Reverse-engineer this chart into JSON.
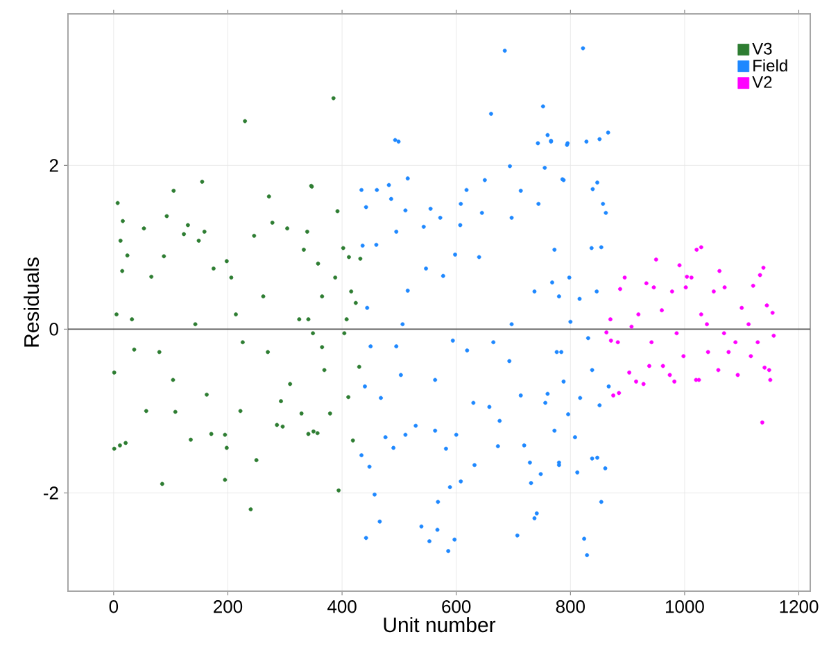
{
  "chart_data": {
    "type": "scatter",
    "xlabel": "Unit number",
    "ylabel": "Residuals",
    "xlim": [
      -80,
      1220
    ],
    "ylim": [
      -3.2,
      3.85
    ],
    "xticks": [
      0,
      200,
      400,
      600,
      800,
      1000,
      1200
    ],
    "yticks": [
      -2,
      0,
      2
    ],
    "grid": true,
    "legend": "top right",
    "marker": "circle",
    "ref_lines": [
      {
        "axis": "y",
        "value": 0,
        "color": "#555555"
      }
    ],
    "series": [
      {
        "name": "V3",
        "color": "#2e7d32",
        "x": [
          1,
          11,
          21,
          7,
          16,
          12,
          15,
          24,
          1,
          5,
          32,
          36,
          53,
          66,
          57,
          85,
          93,
          105,
          88,
          80,
          104,
          108,
          123,
          130,
          135,
          155,
          149,
          159,
          143,
          163,
          171,
          175,
          195,
          195,
          198,
          198,
          206,
          230,
          240,
          250,
          222,
          226,
          214,
          246,
          272,
          278,
          262,
          286,
          296,
          304,
          293,
          270,
          309,
          329,
          333,
          339,
          346,
          341,
          350,
          325,
          349,
          358,
          365,
          369,
          385,
          347,
          392,
          394,
          357,
          379,
          411,
          419,
          402,
          412,
          432,
          424,
          430,
          404,
          365,
          341,
          408,
          388,
          416
        ],
        "values": [
          -1.46,
          -1.42,
          -1.39,
          1.54,
          1.32,
          1.08,
          0.71,
          0.9,
          -0.53,
          0.18,
          0.12,
          -0.25,
          1.23,
          0.64,
          -1.0,
          -1.89,
          1.38,
          1.69,
          0.89,
          -0.28,
          -0.62,
          -1.01,
          1.16,
          1.27,
          -1.35,
          1.8,
          1.08,
          1.19,
          0.06,
          -0.8,
          -1.28,
          0.74,
          -1.29,
          -1.84,
          -1.45,
          0.83,
          0.63,
          2.54,
          -2.2,
          -1.6,
          -1.0,
          -0.16,
          0.18,
          1.14,
          1.62,
          1.3,
          0.4,
          -1.17,
          -1.19,
          1.23,
          -0.88,
          -0.28,
          -0.67,
          -1.03,
          0.97,
          1.19,
          1.75,
          -1.28,
          -1.25,
          0.12,
          -0.05,
          0.8,
          0.4,
          -0.5,
          2.82,
          1.74,
          1.44,
          -1.97,
          -1.27,
          -1.03,
          -0.83,
          -1.36,
          0.99,
          0.88,
          0.86,
          0.32,
          -0.46,
          -0.05,
          -0.22,
          0.12,
          0.12,
          0.63,
          0.46
        ]
      },
      {
        "name": "Field",
        "color": "#1e88ff",
        "x": [
          434,
          442,
          436,
          444,
          440,
          434,
          442,
          448,
          457,
          466,
          460,
          461,
          450,
          468,
          482,
          486,
          493,
          499,
          490,
          476,
          495,
          495,
          503,
          515,
          511,
          515,
          506,
          511,
          529,
          539,
          543,
          553,
          567,
          568,
          563,
          555,
          547,
          563,
          572,
          577,
          582,
          586,
          589,
          597,
          600,
          608,
          598,
          608,
          607,
          594,
          618,
          619,
          630,
          632,
          640,
          645,
          650,
          661,
          658,
          665,
          676,
          673,
          685,
          694,
          697,
          693,
          697,
          707,
          713,
          713,
          719,
          729,
          731,
          737,
          741,
          743,
          744,
          752,
          755,
          760,
          766,
          768,
          748,
          737,
          756,
          772,
          780,
          788,
          795,
          784,
          822,
          766,
          794,
          828,
          851,
          866,
          786,
          839,
          847,
          857,
          862,
          837,
          854,
          824,
          829,
          854,
          838,
          847,
          861,
          812,
          780,
          808,
          796,
          760,
          851,
          867,
          831,
          800,
          798,
          816,
          780,
          772,
          776,
          846,
          838,
          817,
          788
        ],
        "values": [
          1.7,
          1.49,
          1.02,
          0.26,
          -0.7,
          -1.54,
          -2.55,
          -1.68,
          -2.02,
          -2.35,
          1.03,
          1.7,
          -0.21,
          -0.84,
          1.76,
          1.59,
          2.31,
          2.29,
          -1.45,
          -1.32,
          1.19,
          -0.21,
          -0.56,
          1.84,
          1.45,
          0.47,
          0.06,
          -1.29,
          -1.18,
          -2.41,
          1.25,
          -2.59,
          -2.45,
          -2.11,
          -1.24,
          1.47,
          0.74,
          -0.62,
          1.36,
          0.65,
          -1.46,
          -2.71,
          -1.93,
          -2.57,
          -1.29,
          -1.86,
          0.91,
          1.53,
          1.27,
          -0.14,
          1.7,
          -0.26,
          -0.9,
          -1.66,
          0.88,
          1.42,
          1.82,
          2.63,
          -0.95,
          -0.16,
          -1.12,
          -1.43,
          3.4,
          1.99,
          1.36,
          -0.39,
          0.06,
          -2.52,
          1.69,
          -0.81,
          -1.42,
          -1.63,
          -1.88,
          -2.31,
          -2.25,
          2.27,
          1.53,
          2.72,
          1.97,
          2.37,
          2.29,
          0.57,
          -1.77,
          0.46,
          -0.9,
          -1.24,
          -1.63,
          1.82,
          2.27,
          -0.28,
          3.43,
          2.3,
          2.25,
          2.29,
          2.32,
          2.4,
          1.83,
          1.71,
          1.79,
          1.53,
          1.42,
          0.99,
          1.0,
          -2.56,
          -2.76,
          -2.11,
          -1.58,
          -1.57,
          -1.7,
          -1.75,
          -1.66,
          -1.32,
          -1.04,
          -0.79,
          -0.93,
          -0.7,
          -0.11,
          0.09,
          0.63,
          0.37,
          0.4,
          0.97,
          -0.28,
          0.46,
          -0.5,
          -0.84,
          -0.64
        ]
      },
      {
        "name": "V2",
        "color": "#ff00ff",
        "x": [
          863,
          870,
          875,
          885,
          887,
          895,
          883,
          903,
          915,
          928,
          919,
          907,
          933,
          938,
          950,
          946,
          960,
          962,
          974,
          982,
          978,
          986,
          991,
          1002,
          1004,
          998,
          1012,
          1020,
          1025,
          1021,
          1029,
          1029,
          1039,
          1041,
          1051,
          1059,
          1061,
          1070,
          1069,
          1077,
          1093,
          1089,
          1100,
          1112,
          1116,
          1120,
          1128,
          1136,
          1132,
          1138,
          1144,
          1140,
          1148,
          1150,
          1154,
          1156,
          871,
          942
        ],
        "values": [
          -0.04,
          0.12,
          -0.81,
          -0.78,
          0.49,
          0.63,
          -0.16,
          -0.53,
          -0.64,
          -0.67,
          0.18,
          0.03,
          0.56,
          -0.45,
          0.85,
          0.51,
          0.23,
          -0.45,
          -0.56,
          -0.64,
          0.46,
          -0.05,
          0.78,
          0.51,
          0.64,
          -0.33,
          0.63,
          -0.62,
          -0.62,
          0.97,
          1.0,
          0.18,
          0.06,
          -0.28,
          0.46,
          -0.5,
          0.71,
          0.51,
          -0.05,
          -0.28,
          -0.56,
          -0.16,
          0.26,
          0.06,
          -0.33,
          0.53,
          -0.16,
          -1.14,
          0.66,
          0.75,
          0.29,
          -0.47,
          -0.5,
          -0.62,
          0.2,
          -0.08,
          -0.14,
          -0.16
        ]
      }
    ]
  }
}
